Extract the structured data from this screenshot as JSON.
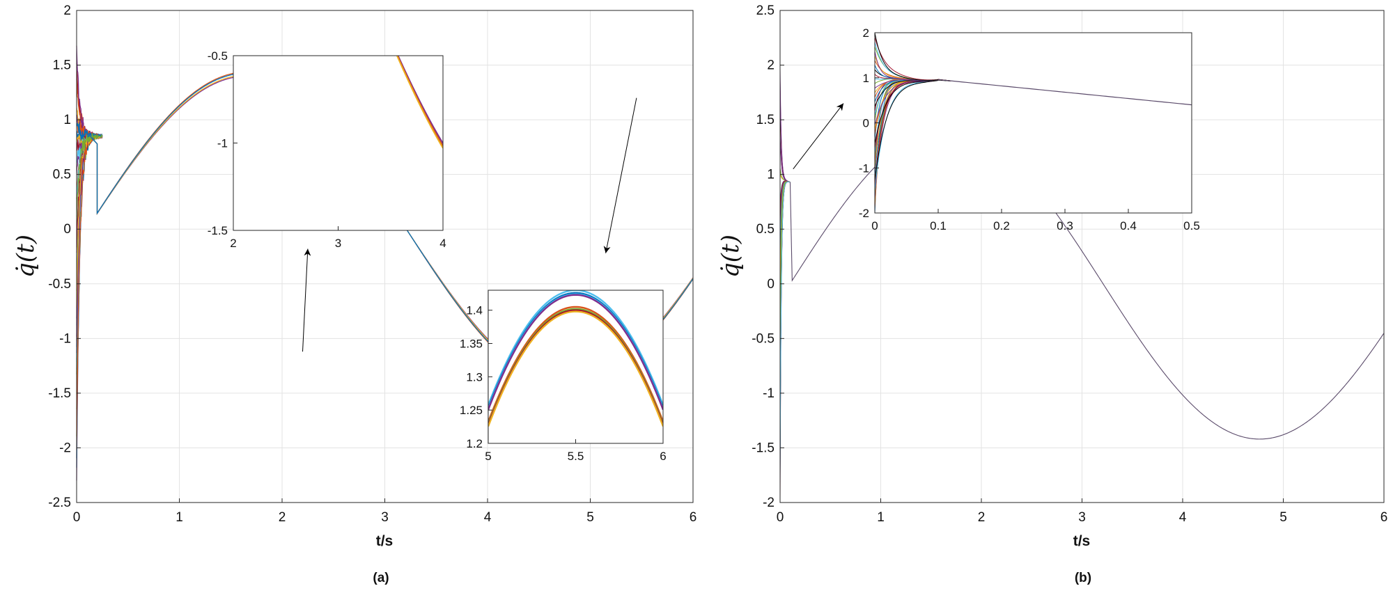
{
  "chart_data": [
    {
      "id": "a",
      "type": "line",
      "panel_label": "(a)",
      "xlabel": "t/s",
      "ylabel": "q̇(t)",
      "xlim": [
        0,
        6
      ],
      "ylim": [
        -2.5,
        2
      ],
      "xticks": [
        "0",
        "1",
        "2",
        "3",
        "4",
        "5",
        "6"
      ],
      "yticks": [
        "-2.5",
        "-2",
        "-1.5",
        "-1",
        "-0.5",
        "0",
        "0.5",
        "1",
        "1.5",
        "2"
      ],
      "grid": true,
      "curve": {
        "description": "many trajectories: q̇(t) ≈ 1.42·sin(1.01·t − 0.1) after transient",
        "amplitude": 1.42,
        "omega": 1.01,
        "phase": -0.1,
        "transient_end": 0.2
      },
      "series_colors": [
        "#7e2f8e",
        "#d95319",
        "#edb120",
        "#0072bd",
        "#77ac30",
        "#4dbeee",
        "#a2142f"
      ],
      "annotations": [
        {
          "type": "arrow",
          "from": [
            2.2,
            -1.12
          ],
          "to": [
            2.25,
            -0.18
          ]
        },
        {
          "type": "arrow",
          "from": [
            5.45,
            1.2
          ],
          "to": [
            5.15,
            -0.22
          ]
        }
      ],
      "insets": [
        {
          "xlim": [
            2,
            4
          ],
          "ylim": [
            -1.5,
            -0.5
          ],
          "xticks": [
            "2",
            "3",
            "4"
          ],
          "yticks": [
            "-1.5",
            "-1",
            "-0.5"
          ],
          "values": {
            "series_offsets": [
              -0.015,
              0.012
            ]
          }
        },
        {
          "xlim": [
            5,
            6
          ],
          "ylim": [
            1.2,
            1.43
          ],
          "xticks": [
            "5",
            "5.5",
            "6"
          ],
          "yticks": [
            "1.2",
            "1.25",
            "1.3",
            "1.35",
            "1.4"
          ],
          "values": {
            "upper_band_peak": 1.426,
            "lower_band_peak": 1.402
          }
        }
      ]
    },
    {
      "id": "b",
      "type": "line",
      "panel_label": "(b)",
      "xlabel": "t/s",
      "ylabel": "q̇(t)",
      "xlim": [
        0,
        6
      ],
      "ylim": [
        -2,
        2.5
      ],
      "xticks": [
        "0",
        "1",
        "2",
        "3",
        "4",
        "5",
        "6"
      ],
      "yticks": [
        "-2",
        "-1.5",
        "-1",
        "-0.5",
        "0",
        "0.5",
        "1",
        "1.5",
        "2",
        "2.5"
      ],
      "grid": true,
      "curve": {
        "description": "trajectories converge quickly to q̇(t) ≈ 1.42·sin(1.01·t − 0.1)",
        "amplitude": 1.42,
        "omega": 1.01,
        "phase": -0.1,
        "transient_end": 0.1
      },
      "series_colors": [
        "#0072bd",
        "#d95319",
        "#edb120",
        "#7e2f8e",
        "#77ac30",
        "#4dbeee",
        "#a2142f",
        "#000000"
      ],
      "annotations": [
        {
          "type": "arrow",
          "from": [
            0.13,
            1.05
          ],
          "to": [
            0.63,
            1.65
          ]
        }
      ],
      "insets": [
        {
          "xlim": [
            0,
            0.5
          ],
          "ylim": [
            -2,
            2
          ],
          "xticks": [
            "0",
            "0.1",
            "0.2",
            "0.3",
            "0.4",
            "0.5"
          ],
          "yticks": [
            "-2",
            "-1",
            "0",
            "1",
            "2"
          ],
          "values": {
            "converged_value_at_0.1": 0.96,
            "value_at_0.5": 0.4
          }
        }
      ]
    }
  ]
}
